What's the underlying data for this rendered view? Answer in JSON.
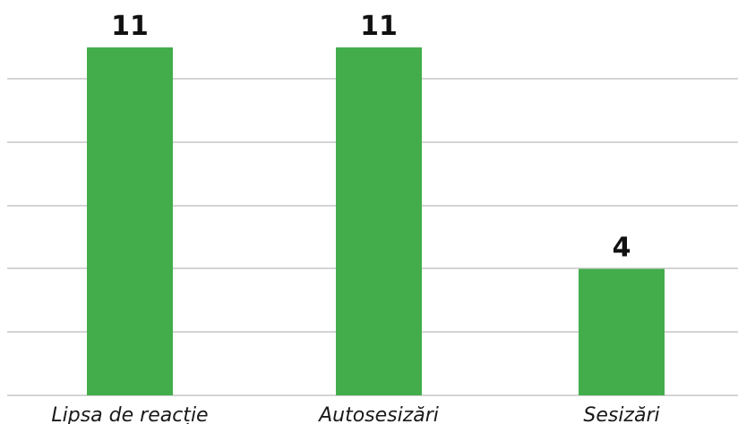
{
  "chart_data": {
    "type": "bar",
    "categories": [
      "Lipsa de reacție",
      "Autosesizări",
      "Sesizări"
    ],
    "values": [
      11,
      11,
      4
    ],
    "ylim": [
      0,
      11
    ],
    "grid": true,
    "bar_color": "#43ad4b",
    "data_labels": [
      "11",
      "11",
      "4"
    ]
  }
}
